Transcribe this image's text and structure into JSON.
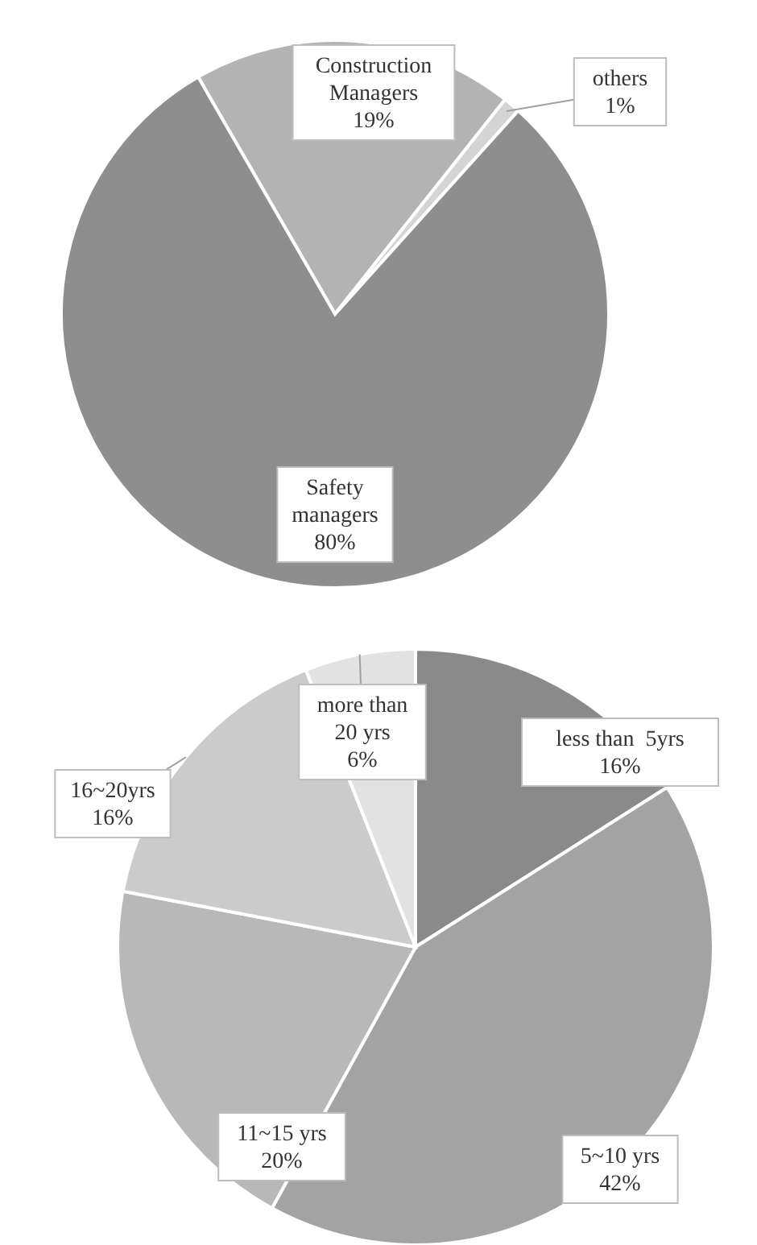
{
  "chart_data": [
    {
      "type": "pie",
      "categories": [
        "Construction Managers",
        "others",
        "Safety managers"
      ],
      "values": [
        19,
        1,
        80
      ],
      "value_labels": [
        "19%",
        "1%",
        "80%"
      ],
      "colors": [
        "#b3b3b3",
        "#d4d4d4",
        "#8e8e8e"
      ]
    },
    {
      "type": "pie",
      "categories": [
        "less than  5yrs",
        "5~10 yrs",
        "11~15 yrs",
        "16~20yrs",
        "more than 20 yrs"
      ],
      "values": [
        16,
        42,
        20,
        16,
        6
      ],
      "value_labels": [
        "16%",
        "42%",
        "20%",
        "16%",
        "6%"
      ],
      "colors": [
        "#8a8a8a",
        "#a3a3a3",
        "#b8b8b8",
        "#cbcbcb",
        "#e2e2e2"
      ]
    }
  ]
}
